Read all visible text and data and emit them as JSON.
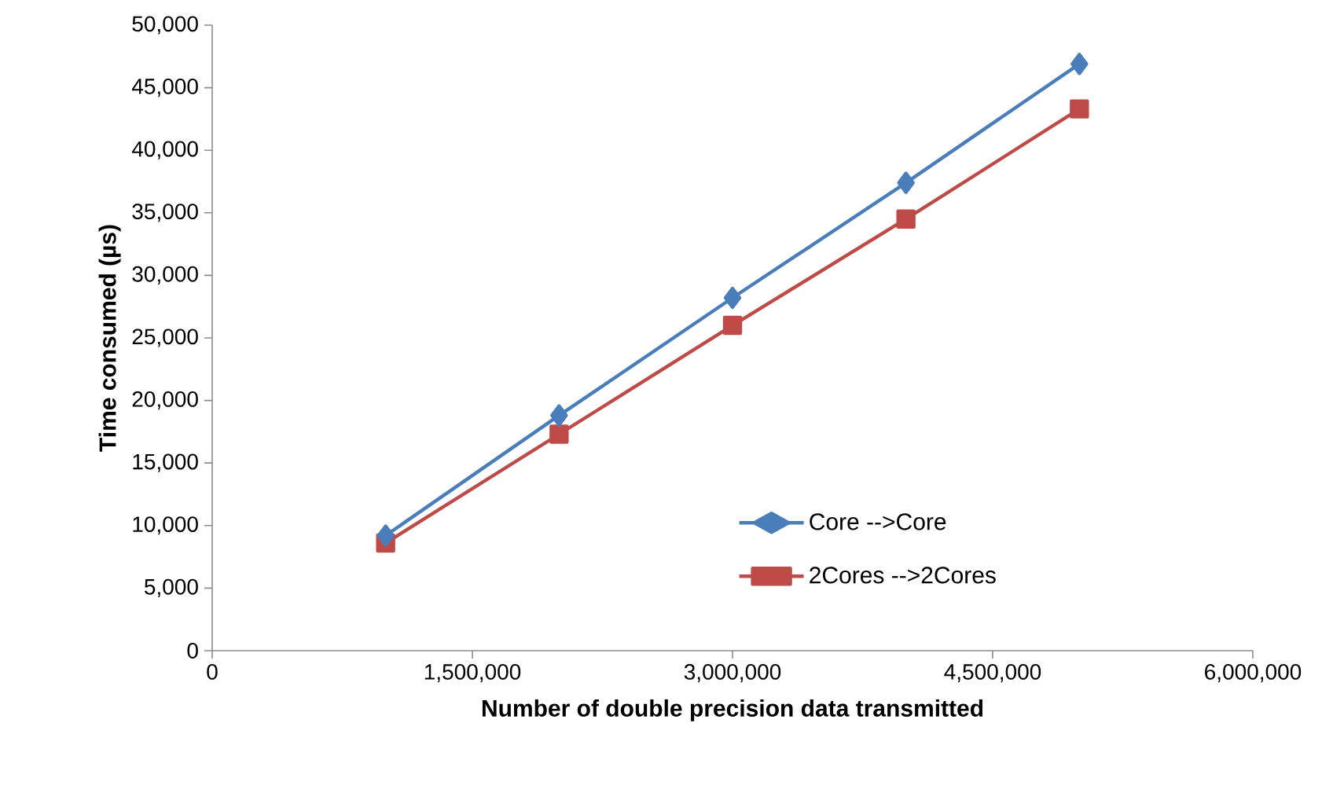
{
  "chart_data": {
    "type": "line",
    "xlabel": "Number of double precision data transmitted",
    "ylabel": "Time consumed  (µs)",
    "xlim": [
      0,
      6000000
    ],
    "ylim": [
      0,
      50000
    ],
    "xticks": [
      0,
      {
        "value": 1500000,
        "label": "1,500,000"
      },
      {
        "value": 3000000,
        "label": "3,000,000"
      },
      {
        "value": 4500000,
        "label": "4,500,000"
      },
      {
        "value": 6000000,
        "label": "6,000,000"
      }
    ],
    "yticks": [
      0,
      {
        "value": 5000,
        "label": "5,000"
      },
      {
        "value": 10000,
        "label": "10,000"
      },
      {
        "value": 15000,
        "label": "15,000"
      },
      {
        "value": 20000,
        "label": "20,000"
      },
      {
        "value": 25000,
        "label": "25,000"
      },
      {
        "value": 30000,
        "label": "30,000"
      },
      {
        "value": 35000,
        "label": "35,000"
      },
      {
        "value": 40000,
        "label": "40,000"
      },
      {
        "value": 45000,
        "label": "45,000"
      },
      {
        "value": 50000,
        "label": "50,000"
      }
    ],
    "x": [
      1000000,
      2000000,
      3000000,
      4000000,
      5000000
    ],
    "series": [
      {
        "name": "Core -->Core",
        "color": "#4a7ebb",
        "marker": "diamond",
        "values": [
          9200,
          18800,
          28200,
          37400,
          46900
        ]
      },
      {
        "name": "2Cores -->2Cores",
        "color": "#be4b48",
        "marker": "square",
        "values": [
          8600,
          17300,
          26000,
          34500,
          43300
        ]
      }
    ],
    "grid": false,
    "legend": "bottom right",
    "line_style": "solid"
  }
}
